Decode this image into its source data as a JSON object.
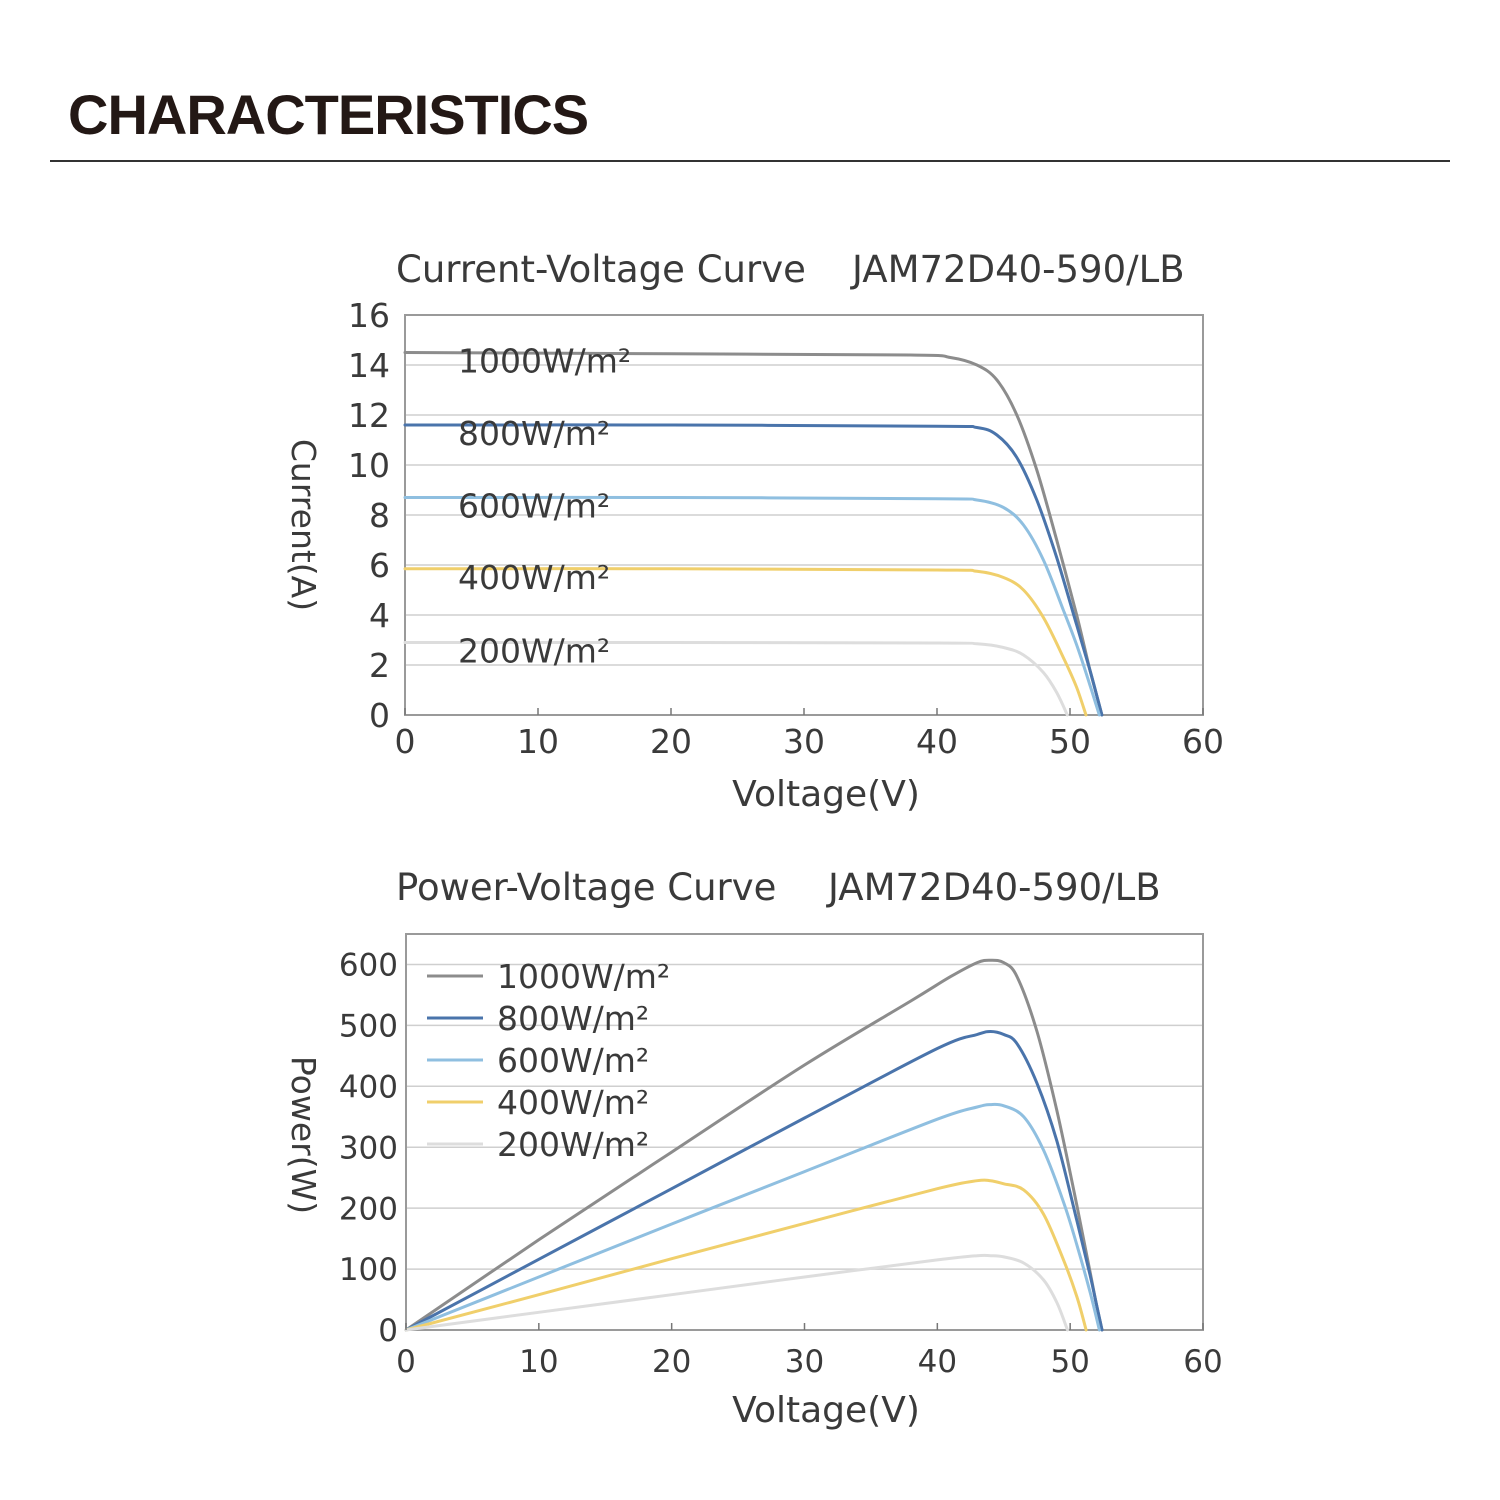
{
  "page": {
    "title": "CHARACTERISTICS"
  },
  "chart_data": [
    {
      "type": "line",
      "title": "Current-Voltage Curve",
      "model": "JAM72D40-590/LB",
      "xlabel": "Voltage(V)",
      "ylabel": "Current(A)",
      "xlim": [
        0,
        60
      ],
      "ylim": [
        0,
        16
      ],
      "xticks": [
        0,
        10,
        20,
        30,
        40,
        50,
        60
      ],
      "yticks": [
        0,
        2,
        4,
        6,
        8,
        10,
        12,
        14,
        16
      ],
      "grid": "horizontal",
      "label_placement": "inline-left",
      "series": [
        {
          "name": "1000W/m²",
          "color": "#8c8c8c",
          "x": [
            0,
            20,
            38,
            41,
            43,
            44.5,
            46,
            47.5,
            49,
            50.5,
            51.5,
            52,
            52.4
          ],
          "y": [
            14.5,
            14.45,
            14.4,
            14.3,
            14.0,
            13.4,
            12.0,
            9.8,
            7.0,
            4.0,
            1.8,
            0.8,
            0
          ]
        },
        {
          "name": "800W/m²",
          "color": "#4a74ab",
          "x": [
            0,
            20,
            40,
            43,
            44.5,
            46,
            47.5,
            49,
            50.5,
            51.5,
            52,
            52.4
          ],
          "y": [
            11.6,
            11.6,
            11.55,
            11.5,
            11.2,
            10.3,
            8.6,
            6.3,
            3.6,
            1.8,
            0.8,
            0
          ]
        },
        {
          "name": "600W/m²",
          "color": "#8fbfe0",
          "x": [
            0,
            20,
            40,
            43,
            45,
            46.5,
            48,
            49.5,
            50.5,
            51.5,
            52.2
          ],
          "y": [
            8.7,
            8.7,
            8.65,
            8.6,
            8.3,
            7.6,
            6.2,
            4.2,
            2.8,
            1.2,
            0
          ]
        },
        {
          "name": "400W/m²",
          "color": "#f0cf6b",
          "x": [
            0,
            20,
            40,
            43,
            45,
            46.5,
            48,
            49.5,
            50.5,
            51.2
          ],
          "y": [
            5.85,
            5.85,
            5.8,
            5.75,
            5.5,
            5.0,
            3.9,
            2.3,
            1.1,
            0
          ]
        },
        {
          "name": "200W/m²",
          "color": "#dddddd",
          "x": [
            0,
            20,
            40,
            43,
            45,
            46.5,
            48,
            49,
            49.8
          ],
          "y": [
            2.9,
            2.9,
            2.88,
            2.85,
            2.7,
            2.4,
            1.7,
            0.9,
            0
          ]
        }
      ]
    },
    {
      "type": "line",
      "title": "Power-Voltage Curve",
      "model": "JAM72D40-590/LB",
      "xlabel": "Voltage(V)",
      "ylabel": "Power(W)",
      "xlim": [
        0,
        60
      ],
      "ylim": [
        0,
        650
      ],
      "xticks": [
        0,
        10,
        20,
        30,
        40,
        50,
        60
      ],
      "yticks": [
        0,
        100,
        200,
        300,
        400,
        500,
        600
      ],
      "grid": "horizontal",
      "legend": "top-left",
      "series": [
        {
          "name": "1000W/m²",
          "color": "#8c8c8c",
          "x": [
            0,
            10,
            20,
            30,
            38,
            41,
            43,
            44,
            45,
            46,
            47.5,
            49,
            50.5,
            51.5,
            52,
            52.4
          ],
          "y": [
            0,
            148,
            292,
            435,
            540,
            580,
            603,
            607,
            603,
            580,
            490,
            360,
            205,
            95,
            40,
            0
          ]
        },
        {
          "name": "800W/m²",
          "color": "#4a74ab",
          "x": [
            0,
            10,
            20,
            30,
            40,
            43,
            44,
            45,
            46,
            47.5,
            49,
            50.5,
            51.5,
            52,
            52.4
          ],
          "y": [
            0,
            116,
            232,
            348,
            462,
            485,
            490,
            485,
            470,
            405,
            310,
            180,
            90,
            40,
            0
          ]
        },
        {
          "name": "600W/m²",
          "color": "#8fbfe0",
          "x": [
            0,
            10,
            20,
            30,
            40,
            43,
            44,
            45,
            46.5,
            48,
            49.5,
            50.5,
            51.5,
            52.2
          ],
          "y": [
            0,
            87,
            174,
            260,
            346,
            366,
            370,
            368,
            350,
            295,
            210,
            140,
            62,
            0
          ]
        },
        {
          "name": "400W/m²",
          "color": "#f0cf6b",
          "x": [
            0,
            10,
            20,
            30,
            40,
            43,
            44,
            45,
            46.5,
            48,
            49.5,
            50.5,
            51.2
          ],
          "y": [
            0,
            58,
            117,
            175,
            232,
            245,
            245,
            240,
            230,
            190,
            115,
            55,
            0
          ]
        },
        {
          "name": "200W/m²",
          "color": "#dddddd",
          "x": [
            0,
            10,
            20,
            30,
            40,
            43,
            44,
            45,
            46.5,
            48,
            49,
            49.8
          ],
          "y": [
            0,
            29,
            58,
            87,
            115,
            122,
            122,
            120,
            110,
            82,
            45,
            0
          ]
        }
      ]
    }
  ]
}
